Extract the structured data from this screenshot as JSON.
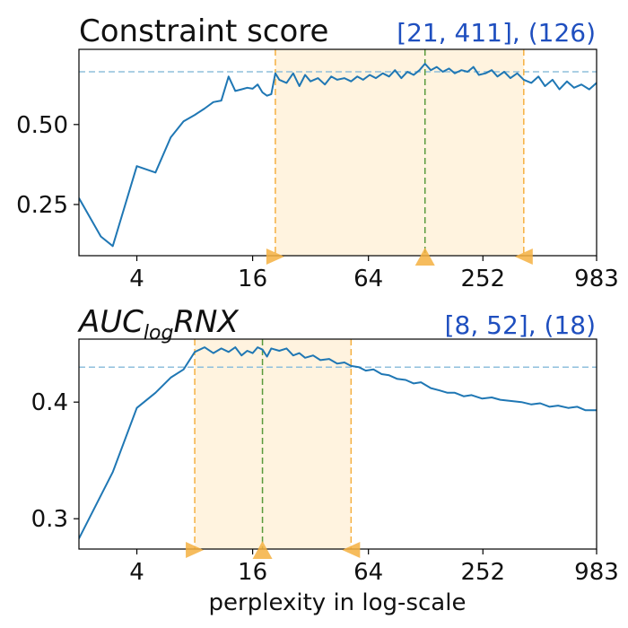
{
  "chart_data": [
    {
      "type": "line",
      "title": "Constraint score",
      "range_annotation": "[21, 411], (126)",
      "xscale": "log2",
      "xlim": [
        2,
        983
      ],
      "ylim": [
        0.09,
        0.735
      ],
      "xticks": [
        4,
        16,
        64,
        252,
        983
      ],
      "xtick_labels": [
        "4",
        "16",
        "64",
        "252",
        "983"
      ],
      "yticks": [
        0.25,
        0.5
      ],
      "ytick_labels": [
        "0.25",
        "0.50"
      ],
      "xlabel": "",
      "ylabel": "",
      "best_range": [
        21,
        411
      ],
      "best_x": 126,
      "threshold_y": 0.665,
      "colors": {
        "line": "#1f77b4",
        "span": "#fff3df",
        "range": "#f5b041",
        "best": "#5a9a3c",
        "threshold": "#8fbfdc",
        "label": "#1f4fbf"
      },
      "series": [
        {
          "x": [
            2,
            2.6,
            3,
            4,
            5,
            6,
            7,
            8,
            9,
            10,
            11,
            12,
            13,
            14,
            15,
            16,
            17,
            18,
            19,
            20,
            21,
            22,
            24,
            26,
            28,
            30,
            32,
            35,
            38,
            41,
            44,
            48,
            52,
            56,
            60,
            65,
            70,
            76,
            82,
            88,
            95,
            102,
            110,
            118,
            126,
            135,
            145,
            156,
            168,
            180,
            195,
            210,
            225,
            240,
            260,
            280,
            300,
            325,
            350,
            380,
            411,
            450,
            490,
            530,
            580,
            630,
            690,
            750,
            820,
            900,
            983
          ],
          "y": [
            0.27,
            0.15,
            0.12,
            0.37,
            0.35,
            0.46,
            0.51,
            0.53,
            0.55,
            0.57,
            0.575,
            0.65,
            0.605,
            0.61,
            0.615,
            0.612,
            0.625,
            0.6,
            0.59,
            0.595,
            0.66,
            0.64,
            0.63,
            0.66,
            0.62,
            0.655,
            0.635,
            0.645,
            0.625,
            0.65,
            0.64,
            0.645,
            0.635,
            0.65,
            0.64,
            0.655,
            0.645,
            0.66,
            0.65,
            0.67,
            0.645,
            0.665,
            0.655,
            0.67,
            0.69,
            0.67,
            0.68,
            0.665,
            0.675,
            0.66,
            0.67,
            0.665,
            0.68,
            0.655,
            0.66,
            0.67,
            0.65,
            0.665,
            0.645,
            0.66,
            0.64,
            0.63,
            0.65,
            0.62,
            0.64,
            0.61,
            0.635,
            0.615,
            0.625,
            0.61,
            0.63
          ]
        }
      ]
    },
    {
      "type": "line",
      "title": "AUC",
      "title_subscript": "log",
      "title_suffix": "RNX",
      "range_annotation": "[8, 52], (18)",
      "xscale": "log2",
      "xlim": [
        2,
        983
      ],
      "ylim": [
        0.274,
        0.454
      ],
      "xticks": [
        4,
        16,
        64,
        252,
        983
      ],
      "xtick_labels": [
        "4",
        "16",
        "64",
        "252",
        "983"
      ],
      "yticks": [
        0.3,
        0.4
      ],
      "ytick_labels": [
        "0.3",
        "0.4"
      ],
      "xlabel": "perplexity in log-scale",
      "ylabel": "",
      "best_range": [
        8,
        52
      ],
      "best_x": 18,
      "threshold_y": 0.43,
      "colors": {
        "line": "#1f77b4",
        "span": "#fff3df",
        "range": "#f5b041",
        "best": "#5a9a3c",
        "threshold": "#8fbfdc",
        "label": "#1f4fbf"
      },
      "series": [
        {
          "x": [
            2,
            3,
            4,
            5,
            6,
            7,
            8,
            9,
            10,
            11,
            12,
            13,
            14,
            15,
            16,
            17,
            18,
            19,
            20,
            22,
            24,
            26,
            28,
            30,
            33,
            36,
            40,
            44,
            48,
            52,
            57,
            62,
            68,
            75,
            82,
            90,
            100,
            110,
            120,
            135,
            150,
            165,
            180,
            200,
            220,
            250,
            280,
            310,
            350,
            400,
            450,
            500,
            560,
            620,
            700,
            780,
            860,
            983
          ],
          "y": [
            0.283,
            0.34,
            0.395,
            0.408,
            0.421,
            0.428,
            0.443,
            0.447,
            0.442,
            0.446,
            0.443,
            0.447,
            0.44,
            0.444,
            0.442,
            0.447,
            0.445,
            0.439,
            0.446,
            0.444,
            0.446,
            0.44,
            0.442,
            0.438,
            0.44,
            0.436,
            0.437,
            0.433,
            0.434,
            0.431,
            0.43,
            0.427,
            0.428,
            0.424,
            0.423,
            0.42,
            0.419,
            0.416,
            0.417,
            0.412,
            0.41,
            0.408,
            0.408,
            0.405,
            0.406,
            0.403,
            0.404,
            0.402,
            0.401,
            0.4,
            0.398,
            0.399,
            0.396,
            0.397,
            0.395,
            0.396,
            0.393,
            0.393
          ]
        }
      ]
    }
  ]
}
